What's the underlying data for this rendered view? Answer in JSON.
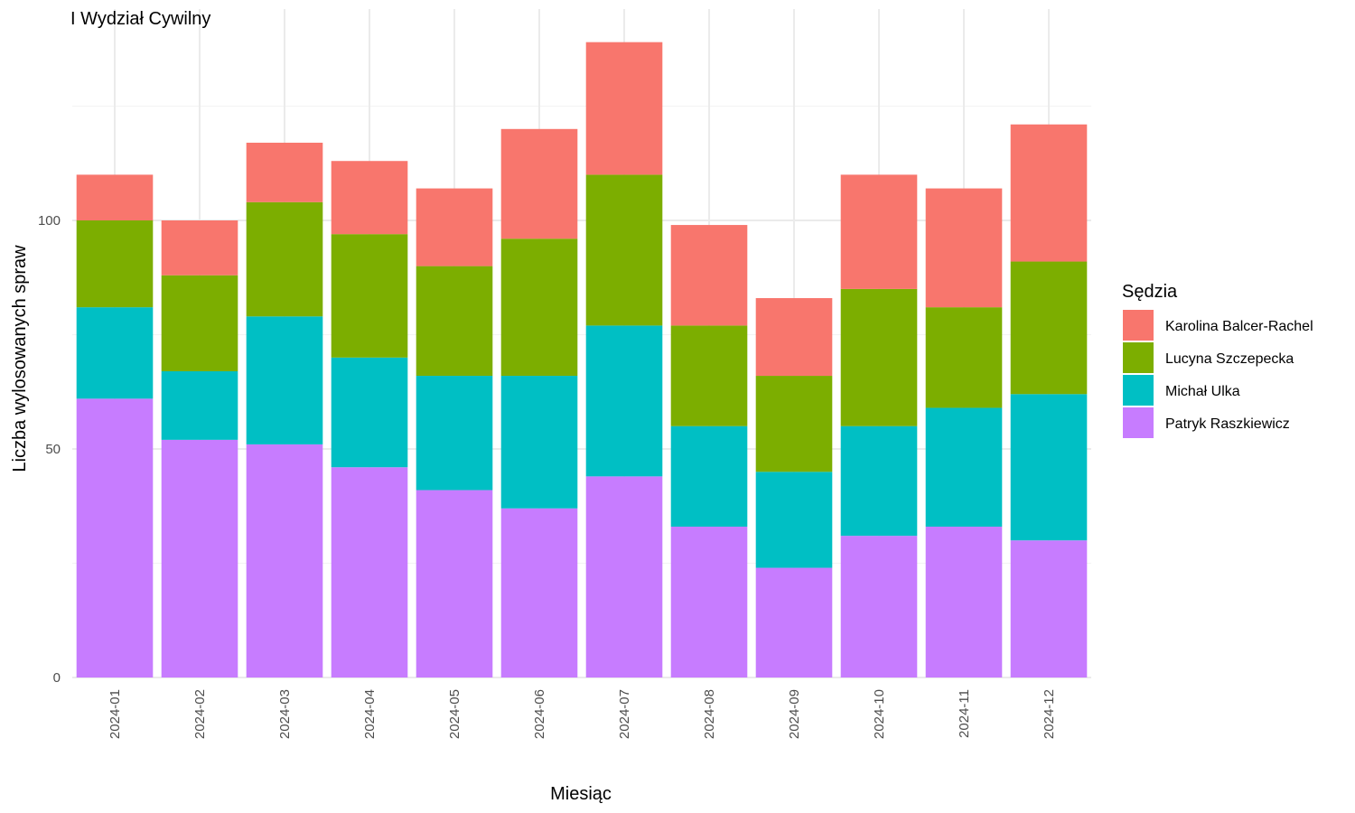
{
  "chart_data": {
    "type": "bar",
    "stacked": true,
    "title": "I Wydział Cywilny",
    "xlabel": "Miesiąc",
    "ylabel": "Liczba wylosowanych spraw",
    "ylim": [
      0,
      145
    ],
    "yticks": [
      0,
      50,
      100
    ],
    "grid": true,
    "legend_title": "Sędzia",
    "legend_position": "right",
    "categories": [
      "2024-01",
      "2024-02",
      "2024-03",
      "2024-04",
      "2024-05",
      "2024-06",
      "2024-07",
      "2024-08",
      "2024-09",
      "2024-10",
      "2024-11",
      "2024-12"
    ],
    "series": [
      {
        "name": "Patryk Raszkiewicz",
        "color": "#C77CFF",
        "values": [
          61,
          52,
          51,
          46,
          41,
          37,
          44,
          33,
          24,
          31,
          33,
          30
        ]
      },
      {
        "name": "Michał Ulka",
        "color": "#00BFC4",
        "values": [
          20,
          15,
          28,
          24,
          25,
          29,
          33,
          22,
          21,
          24,
          26,
          32
        ]
      },
      {
        "name": "Lucyna Szczepecka",
        "color": "#7CAE00",
        "values": [
          19,
          21,
          25,
          27,
          24,
          30,
          33,
          22,
          21,
          30,
          22,
          29
        ]
      },
      {
        "name": "Karolina Balcer-Rachel",
        "color": "#F8766D",
        "values": [
          10,
          12,
          13,
          16,
          17,
          24,
          29,
          22,
          17,
          25,
          26,
          30
        ]
      }
    ],
    "legend_order": [
      "Karolina Balcer-Rachel",
      "Lucyna Szczepecka",
      "Michał Ulka",
      "Patryk Raszkiewicz"
    ]
  }
}
